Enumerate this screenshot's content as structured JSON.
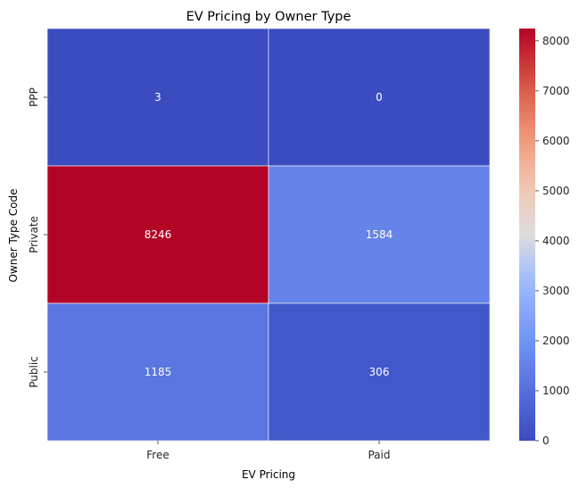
{
  "chart_data": {
    "type": "heatmap",
    "title": "EV Pricing by Owner Type",
    "xlabel": "EV Pricing",
    "ylabel": "Owner Type Code",
    "x_categories": [
      "Free",
      "Paid"
    ],
    "y_categories": [
      "PPP",
      "Private",
      "Public"
    ],
    "values": [
      [
        3,
        0
      ],
      [
        8246,
        1584
      ],
      [
        1185,
        306
      ]
    ],
    "colormap": "coolwarm",
    "colorbar": {
      "vmin": 0,
      "vmax": 8246,
      "ticks": [
        0,
        1000,
        2000,
        3000,
        4000,
        5000,
        6000,
        7000,
        8000
      ]
    },
    "colors": {
      "low": "#3b4cc0",
      "high": "#b40426",
      "grid_line": "#ffffff"
    }
  }
}
